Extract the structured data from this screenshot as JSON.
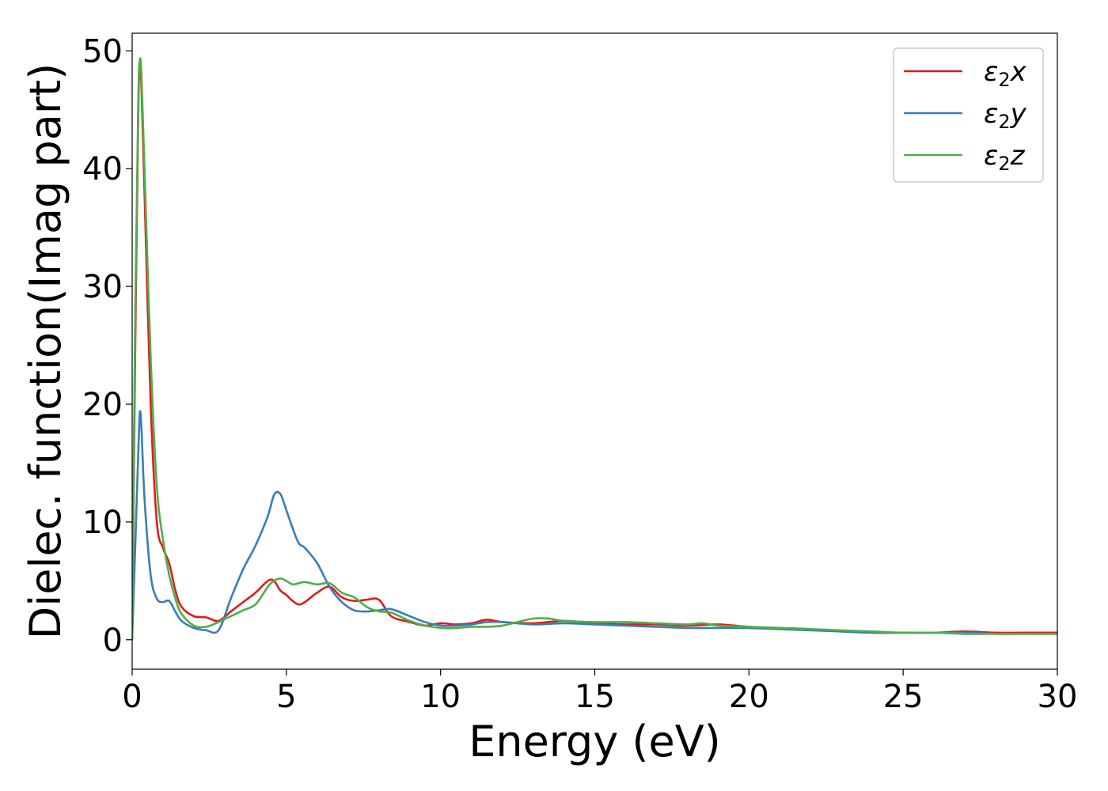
{
  "chart_data": {
    "type": "line",
    "title": "",
    "xlabel": "Energy (eV)",
    "ylabel": "Dielec. function(Imag part)",
    "xlim": [
      0,
      30
    ],
    "ylim": [
      -2.5,
      51.5
    ],
    "xticks": [
      0,
      5,
      10,
      15,
      20,
      25,
      30
    ],
    "xtick_labels": [
      "0",
      "5",
      "10",
      "15",
      "20",
      "25",
      "30"
    ],
    "yticks": [
      0,
      10,
      20,
      30,
      40,
      50
    ],
    "ytick_labels": [
      "0",
      "10",
      "20",
      "30",
      "40",
      "50"
    ],
    "grid": false,
    "legend_position": "top-right",
    "series": [
      {
        "name": "ε2x",
        "legend_base": "ε",
        "legend_sub": "2",
        "legend_var": "x",
        "color": "#e41a1c",
        "x": [
          0,
          0.1,
          0.2,
          0.25,
          0.3,
          0.4,
          0.6,
          0.8,
          1.0,
          1.2,
          1.4,
          1.6,
          2.0,
          2.4,
          2.8,
          3.2,
          3.6,
          4.0,
          4.4,
          4.6,
          4.8,
          5.0,
          5.2,
          5.4,
          5.6,
          6.0,
          6.4,
          6.8,
          7.2,
          7.6,
          8.0,
          8.4,
          9.0,
          9.5,
          10.0,
          10.5,
          11.0,
          11.5,
          12.0,
          13.0,
          14.0,
          15.0,
          16.0,
          17.0,
          18.0,
          19.0,
          20.0,
          21.0,
          22.0,
          23.0,
          24.0,
          25.0,
          26.0,
          27.0,
          28.0,
          29.0,
          30.0
        ],
        "y": [
          0,
          25,
          45,
          49,
          47,
          38,
          20,
          10,
          7.8,
          6.5,
          4.2,
          2.8,
          2.0,
          1.9,
          1.6,
          2.4,
          3.2,
          4.0,
          5.0,
          5.0,
          4.2,
          3.8,
          3.3,
          3.0,
          3.2,
          4.0,
          4.5,
          3.6,
          3.3,
          3.4,
          3.4,
          2.0,
          1.5,
          1.2,
          1.4,
          1.3,
          1.4,
          1.7,
          1.5,
          1.4,
          1.6,
          1.4,
          1.3,
          1.3,
          1.2,
          1.3,
          1.1,
          1.0,
          0.9,
          0.7,
          0.6,
          0.6,
          0.6,
          0.7,
          0.6,
          0.6,
          0.6
        ]
      },
      {
        "name": "ε2y",
        "legend_base": "ε",
        "legend_sub": "2",
        "legend_var": "y",
        "color": "#377eb8",
        "x": [
          0,
          0.1,
          0.2,
          0.25,
          0.3,
          0.4,
          0.6,
          0.8,
          1.0,
          1.2,
          1.4,
          1.6,
          2.0,
          2.4,
          2.8,
          3.2,
          3.6,
          4.0,
          4.4,
          4.6,
          4.8,
          5.0,
          5.2,
          5.4,
          5.6,
          6.0,
          6.4,
          6.8,
          7.2,
          7.6,
          8.0,
          8.4,
          9.0,
          9.5,
          10.0,
          10.5,
          11.0,
          11.5,
          12.0,
          13.0,
          14.0,
          15.0,
          16.0,
          17.0,
          18.0,
          19.0,
          20.0,
          21.0,
          22.0,
          23.0,
          24.0,
          25.0,
          26.0,
          27.0,
          28.0,
          29.0,
          30.0
        ],
        "y": [
          0,
          8,
          16,
          19.3,
          18,
          12,
          5.5,
          3.5,
          3.2,
          3.3,
          2.4,
          1.6,
          1.0,
          0.8,
          0.8,
          3.5,
          6.0,
          8.0,
          10.5,
          12.3,
          12.4,
          11.0,
          9.5,
          8.2,
          7.8,
          6.5,
          4.5,
          3.2,
          2.5,
          2.4,
          2.5,
          2.6,
          2.0,
          1.5,
          1.2,
          1.2,
          1.3,
          1.5,
          1.5,
          1.3,
          1.4,
          1.3,
          1.2,
          1.1,
          1.0,
          1.0,
          1.0,
          0.9,
          0.8,
          0.7,
          0.6,
          0.6,
          0.6,
          0.6,
          0.5,
          0.5,
          0.5
        ]
      },
      {
        "name": "ε2z",
        "legend_base": "ε",
        "legend_sub": "2",
        "legend_var": "z",
        "color": "#4daf4a",
        "x": [
          0,
          0.1,
          0.2,
          0.25,
          0.3,
          0.4,
          0.6,
          0.8,
          1.0,
          1.2,
          1.4,
          1.6,
          2.0,
          2.4,
          2.8,
          3.2,
          3.6,
          4.0,
          4.4,
          4.6,
          4.8,
          5.0,
          5.2,
          5.4,
          5.6,
          6.0,
          6.4,
          6.8,
          7.2,
          7.6,
          8.0,
          8.4,
          9.0,
          9.5,
          10.0,
          10.5,
          11.0,
          11.5,
          12.0,
          12.5,
          13.0,
          13.5,
          14.0,
          15.0,
          16.0,
          17.0,
          18.0,
          18.5,
          19.0,
          20.0,
          21.0,
          22.0,
          23.0,
          24.0,
          25.0,
          26.0,
          27.0,
          28.0,
          29.0,
          30.0
        ],
        "y": [
          0,
          28,
          46,
          49.2,
          48,
          40,
          24,
          13,
          8.5,
          5.5,
          3.5,
          2.2,
          1.2,
          1.1,
          1.5,
          2.0,
          2.5,
          3.0,
          4.5,
          5.0,
          5.2,
          5.0,
          4.7,
          4.8,
          4.9,
          4.7,
          4.8,
          4.0,
          3.6,
          2.8,
          2.4,
          2.3,
          1.6,
          1.2,
          1.0,
          1.0,
          1.1,
          1.1,
          1.2,
          1.5,
          1.8,
          1.8,
          1.6,
          1.5,
          1.5,
          1.4,
          1.3,
          1.4,
          1.2,
          1.1,
          1.0,
          0.9,
          0.8,
          0.7,
          0.6,
          0.6,
          0.5,
          0.5,
          0.5,
          0.5
        ]
      }
    ]
  }
}
